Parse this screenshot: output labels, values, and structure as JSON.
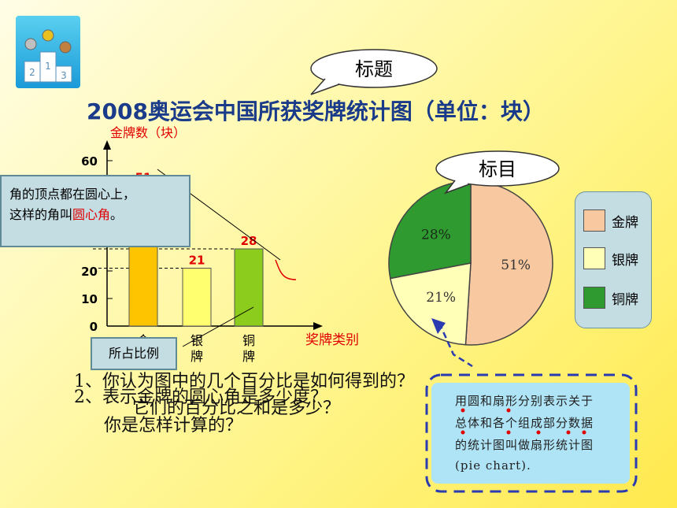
{
  "title": "2008奥运会中国所获奖牌统计图（单位：块）",
  "bubble_title_label": "标题",
  "bubble_item_label": "标目",
  "note": {
    "line1": "角的顶点都在圆心上，",
    "line2_prefix": "这样的角叫",
    "line2_highlight": "圆心角",
    "line2_suffix": "。"
  },
  "ratio_label": "所占比例",
  "questions": {
    "q1": "1、你认为图中的几个百分比是如何得到的？",
    "q1_alt": "它们的百分比之和是多少？",
    "q2": "2、表示金牌的圆心角是多少度？",
    "q2_line2": "你是怎样计算的？"
  },
  "definition": {
    "line1": "用圆和扇形分别表示关于",
    "line2": "总体和各个组成部分数据",
    "line3": "的统计图叫做扇形统计图",
    "line4": "(pie chart)."
  },
  "colors": {
    "gold": "#ffc400",
    "silver": "#ffff70",
    "bronze": "#8ccc1c",
    "pie_gold": "#f8c8a0",
    "pie_silver": "#ffffb8",
    "pie_bronze": "#2f9a2f",
    "title": "#1a3a8a",
    "red": "#e00000"
  },
  "chart_data": [
    {
      "type": "bar",
      "ylabel": "金牌数（块）",
      "xlabel": "奖牌类别",
      "ylim": [
        0,
        60
      ],
      "yticks": [
        "0",
        "10",
        "20",
        "60"
      ],
      "categories": [
        "金牌",
        "银牌",
        "铜牌"
      ],
      "values": [
        51,
        21,
        28
      ],
      "value_labels": [
        "51",
        "21",
        "28"
      ]
    },
    {
      "type": "pie",
      "labels": [
        "金牌",
        "银牌",
        "铜牌"
      ],
      "values": [
        51,
        21,
        28
      ],
      "value_labels": [
        "51%",
        "21%",
        "28%"
      ],
      "legend_position": "right"
    }
  ]
}
